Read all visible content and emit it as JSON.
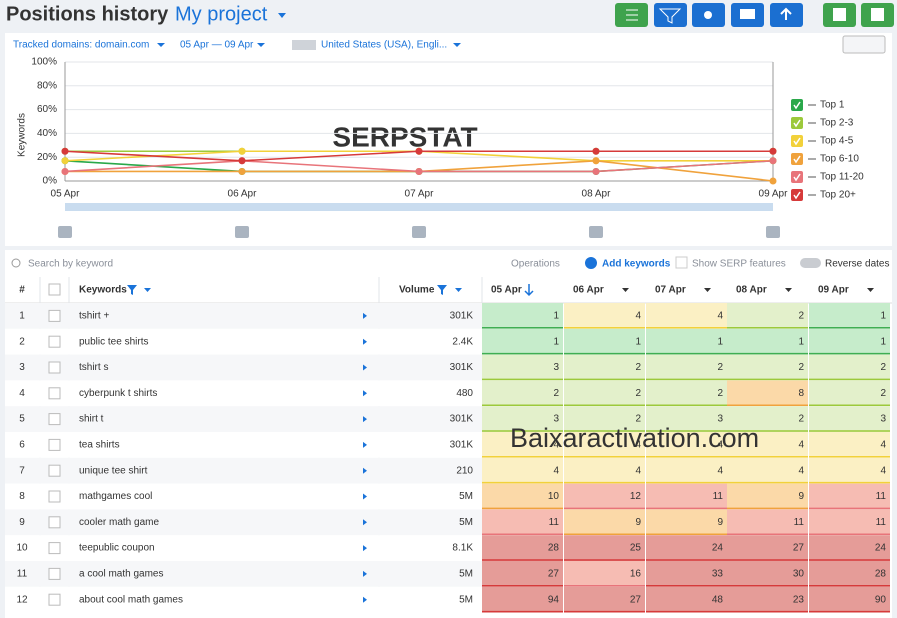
{
  "header": {
    "title": "Positions history",
    "project": "My project"
  },
  "filters": {
    "domains": "Tracked domains: domain.com",
    "dates": "05 Apr — 09 Apr",
    "location": "United States (USA), Engli..."
  },
  "chart_watermark": "SERPSTAT",
  "chart_data": {
    "type": "line",
    "y_label": "Keywords",
    "categories": [
      "05 Apr",
      "06 Apr",
      "07 Apr",
      "08 Apr",
      "09 Apr"
    ],
    "ylim": [
      0,
      100
    ],
    "yticks": [
      {
        "value": 0,
        "label": "0%"
      },
      {
        "value": 20,
        "label": "20%"
      },
      {
        "value": 40,
        "label": "40%"
      },
      {
        "value": 60,
        "label": "60%"
      },
      {
        "value": 80,
        "label": "80%"
      },
      {
        "value": 100,
        "label": "100%"
      }
    ],
    "grid": true,
    "legend": "right",
    "series": [
      {
        "name": "Top 1",
        "color": "#2aa84a",
        "values": [
          17,
          8,
          8,
          8,
          17
        ]
      },
      {
        "name": "Top 2-3",
        "color": "#9cc93b",
        "values": [
          25,
          25,
          25,
          25,
          25
        ]
      },
      {
        "name": "Top 4-5",
        "color": "#f2d13a",
        "values": [
          17,
          25,
          25,
          17,
          17
        ]
      },
      {
        "name": "Top 6-10",
        "color": "#f0a23c",
        "values": [
          8,
          8,
          8,
          17,
          0
        ]
      },
      {
        "name": "Top 11-20",
        "color": "#e8747a",
        "values": [
          8,
          17,
          8,
          8,
          17
        ]
      },
      {
        "name": "Top 20+",
        "color": "#d63a3a",
        "values": [
          25,
          17,
          25,
          25,
          25
        ]
      }
    ]
  },
  "toolbar": {
    "search": "Search by keyword",
    "operations": "Operations",
    "add": "Add keywords",
    "serp": "Show SERP features",
    "reverse": "Reverse dates"
  },
  "table": {
    "columns": [
      "#",
      "Keywords",
      "Volume",
      "05 Apr",
      "06 Apr",
      "07 Apr",
      "08 Apr",
      "09 Apr"
    ],
    "rows": [
      [
        1,
        "tshirt +",
        "301K",
        1,
        4,
        4,
        2,
        1
      ],
      [
        2,
        "public tee shirts",
        "2.4K",
        1,
        1,
        1,
        1,
        1
      ],
      [
        3,
        "tshirt s",
        "301K",
        3,
        2,
        2,
        2,
        2
      ],
      [
        4,
        "cyberpunk t shirts",
        "480",
        2,
        2,
        2,
        8,
        2
      ],
      [
        5,
        "shirt t",
        "301K",
        3,
        2,
        3,
        2,
        3
      ],
      [
        6,
        "tea shirts",
        "301K",
        4,
        4,
        4,
        4,
        4
      ],
      [
        7,
        "unique tee shirt",
        "210",
        4,
        4,
        4,
        4,
        4
      ],
      [
        8,
        "mathgames cool",
        "5M",
        10,
        12,
        11,
        9,
        11
      ],
      [
        9,
        "cooler math game",
        "5M",
        11,
        9,
        9,
        11,
        11
      ],
      [
        10,
        "teepublic coupon",
        "8.1K",
        28,
        25,
        24,
        27,
        24
      ],
      [
        11,
        "a cool math games",
        "5M",
        27,
        16,
        33,
        30,
        28
      ],
      [
        12,
        "about cool math games",
        "5M",
        94,
        27,
        48,
        23,
        90
      ]
    ]
  },
  "overlay_watermark": "Baixaractivation.com"
}
